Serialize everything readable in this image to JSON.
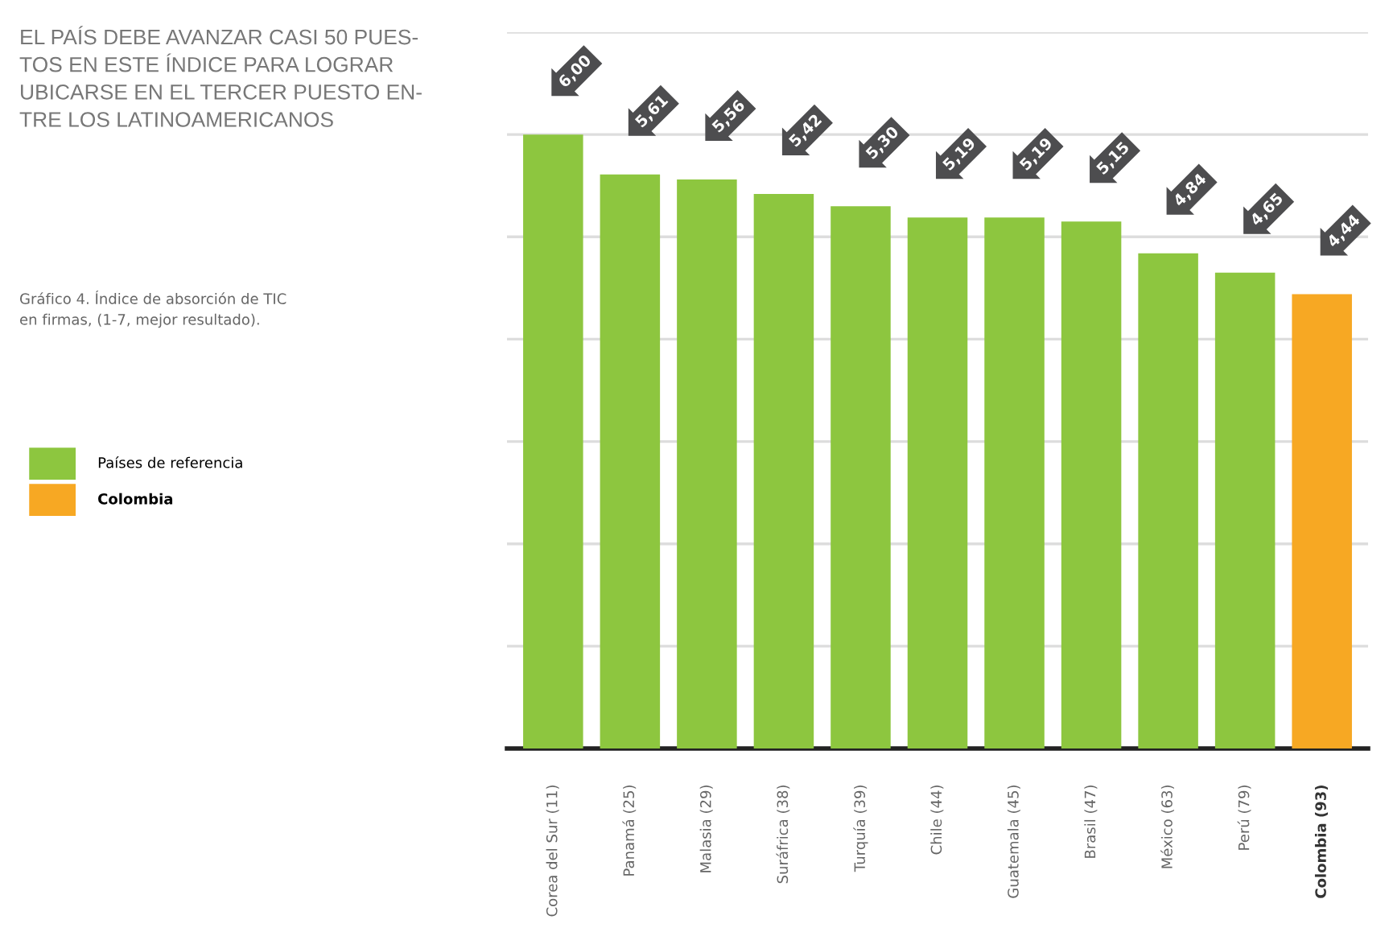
{
  "chart_data": {
    "type": "bar",
    "title": "EL PAÍS DEBE AVANZAR CASI 50 PUES-\nTOS EN ESTE ÍNDICE PARA LOGRAR\nUBICARSE EN EL TERCER PUESTO EN-\nTRE LOS LATINOAMERICANOS",
    "subtitle": "Gráfico 4. Índice de absorción de TIC\nen firmas, (1-7, mejor resultado).",
    "categories": [
      "Corea del Sur (11)",
      "Panamá (25)",
      "Malasia (29)",
      "Suráfrica (38)",
      "Turquía (39)",
      "Chile (44)",
      "Guatemala (45)",
      "Brasil (47)",
      "México (63)",
      "Perú (79)",
      "Colombia (93)"
    ],
    "series": [
      {
        "name": "Países de referencia",
        "color": "#8dc63f",
        "values": [
          6.0,
          5.61,
          5.56,
          5.42,
          5.3,
          5.19,
          5.19,
          5.15,
          4.84,
          4.65,
          null
        ],
        "value_labels": [
          "6,00",
          "5,61",
          "5,56",
          "5,42",
          "5,30",
          "5,19",
          "5,19",
          "5,15",
          "4,84",
          "4,65",
          null
        ]
      },
      {
        "name": "Colombia",
        "color": "#f7a823",
        "values": [
          null,
          null,
          null,
          null,
          null,
          null,
          null,
          null,
          null,
          null,
          4.44
        ],
        "value_labels": [
          null,
          null,
          null,
          null,
          null,
          null,
          null,
          null,
          null,
          null,
          "4,44"
        ]
      }
    ],
    "ylim": [
      0,
      7
    ],
    "yticks": [
      {
        "value": 0,
        "label": null
      },
      {
        "value": 1,
        "label": null
      },
      {
        "value": 2,
        "label": null
      },
      {
        "value": 3,
        "label": null
      },
      {
        "value": 4,
        "label": null
      },
      {
        "value": 5,
        "label": null
      },
      {
        "value": 6,
        "label": null
      },
      {
        "value": 7,
        "label": null
      }
    ],
    "tick_labels": "x",
    "grid": "y",
    "legend": "left"
  }
}
